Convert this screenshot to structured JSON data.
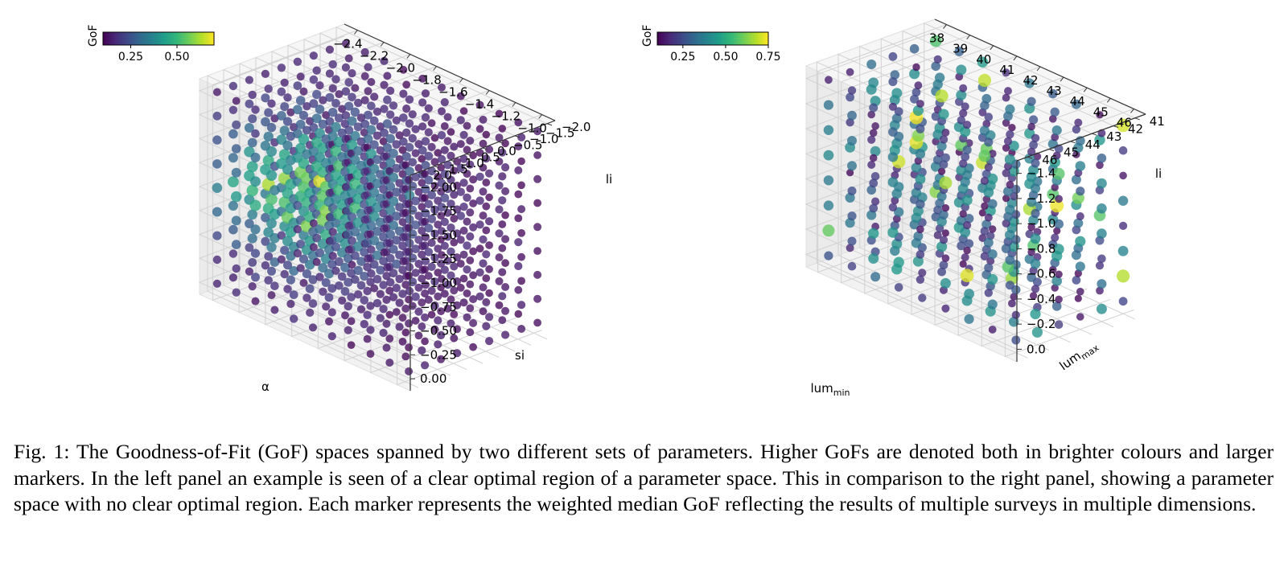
{
  "caption": "Fig. 1: The Goodness-of-Fit (GoF) spaces spanned by two different sets of parameters. Higher GoFs are denoted both in brighter colours and larger markers. In the left panel an example is seen of a clear optimal region of a parameter space. This in comparison to the right panel, showing a parameter space with no clear optimal region. Each marker represents the weighted median GoF reflecting the results of multiple surveys in multiple dimensions.",
  "colormap": [
    "#440154",
    "#482878",
    "#3e4989",
    "#31688e",
    "#26828e",
    "#1f9e89",
    "#35b779",
    "#6ece58",
    "#b5de2b",
    "#fde725"
  ],
  "chart_data": [
    {
      "type": "scatter",
      "projection": "3d",
      "colorbar": {
        "label": "GoF",
        "ticks": [
          "0.25",
          "0.50"
        ],
        "range": [
          0.1,
          0.7
        ]
      },
      "axes": {
        "x": {
          "label": "α",
          "ticks": [
            "−2.4",
            "−2.2",
            "−2.0",
            "−1.8",
            "−1.6",
            "−1.4",
            "−1.2",
            "−1.0"
          ],
          "range": [
            -2.5,
            -1.0
          ]
        },
        "y": {
          "label": "si",
          "ticks": [
            "−2.0",
            "−1.5",
            "−1.0",
            "−0.5",
            "0.0",
            "0.5",
            "1.0",
            "1.5",
            "2.0"
          ],
          "range": [
            -2.0,
            2.0
          ]
        },
        "z": {
          "label": "li",
          "ticks": [
            "−2.00",
            "−1.75",
            "−1.50",
            "−1.25",
            "−1.00",
            "−0.75",
            "−0.50",
            "−0.25",
            "0.00"
          ],
          "range": [
            -2.0,
            0.0
          ]
        }
      },
      "grid": true,
      "grid_points": [
        11,
        9,
        9
      ],
      "optimum": {
        "x": -2.1,
        "y": 0.5,
        "z": -1.0,
        "gof": 0.7
      }
    },
    {
      "type": "scatter",
      "projection": "3d",
      "colorbar": {
        "label": "GoF",
        "ticks": [
          "0.25",
          "0.50",
          "0.75"
        ],
        "range": [
          0.1,
          0.75
        ]
      },
      "axes": {
        "x": {
          "label": "lum",
          "label_sub": "min",
          "ticks": [
            "38",
            "39",
            "40",
            "41",
            "42",
            "43",
            "44",
            "45",
            "46"
          ],
          "range": [
            37.5,
            46.5
          ]
        },
        "y": {
          "label": "lum",
          "label_sub": "max",
          "ticks": [
            "41",
            "42",
            "43",
            "44",
            "45",
            "46"
          ],
          "range": [
            41,
            46
          ]
        },
        "z": {
          "label": "li",
          "ticks": [
            "−1.4",
            "−1.2",
            "−1.0",
            "−0.8",
            "−0.6",
            "−0.4",
            "−0.2",
            "0.0"
          ],
          "range": [
            -1.5,
            0.0
          ]
        }
      },
      "grid": true,
      "grid_points": [
        9,
        6,
        8
      ]
    }
  ]
}
